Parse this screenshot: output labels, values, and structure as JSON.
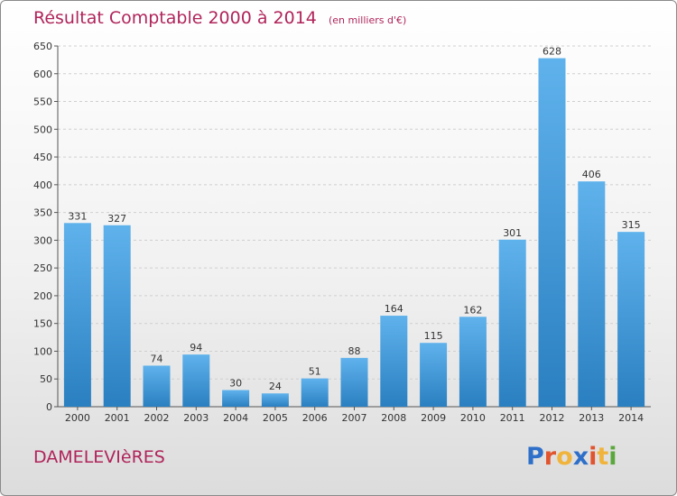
{
  "title": "Résultat Comptable 2000 à 2014",
  "subtitle": "(en milliers d'€)",
  "town": "DAMELEVIèRES",
  "logo": {
    "letters": [
      {
        "ch": "P",
        "color": "#2e6fc9"
      },
      {
        "ch": "r",
        "color": "#e0542e"
      },
      {
        "ch": "o",
        "color": "#f0b43c"
      },
      {
        "ch": "x",
        "color": "#2e6fc9"
      },
      {
        "ch": "i",
        "color": "#e0542e"
      },
      {
        "ch": "t",
        "color": "#f0b43c"
      },
      {
        "ch": "i",
        "color": "#5aa83c"
      }
    ]
  },
  "colors": {
    "bar_top": "#5fb2ec",
    "bar_bottom": "#2a7fc0",
    "title": "#b0245a"
  },
  "chart_data": {
    "type": "bar",
    "categories": [
      "2000",
      "2001",
      "2002",
      "2003",
      "2004",
      "2005",
      "2006",
      "2007",
      "2008",
      "2009",
      "2010",
      "2011",
      "2012",
      "2013",
      "2014"
    ],
    "values": [
      331,
      327,
      74,
      94,
      30,
      24,
      51,
      88,
      164,
      115,
      162,
      301,
      628,
      406,
      315
    ],
    "ylim": [
      0,
      650
    ],
    "yticks": [
      0,
      50,
      100,
      150,
      200,
      250,
      300,
      350,
      400,
      450,
      500,
      550,
      600,
      650
    ],
    "grid": true,
    "data_labels": true
  }
}
